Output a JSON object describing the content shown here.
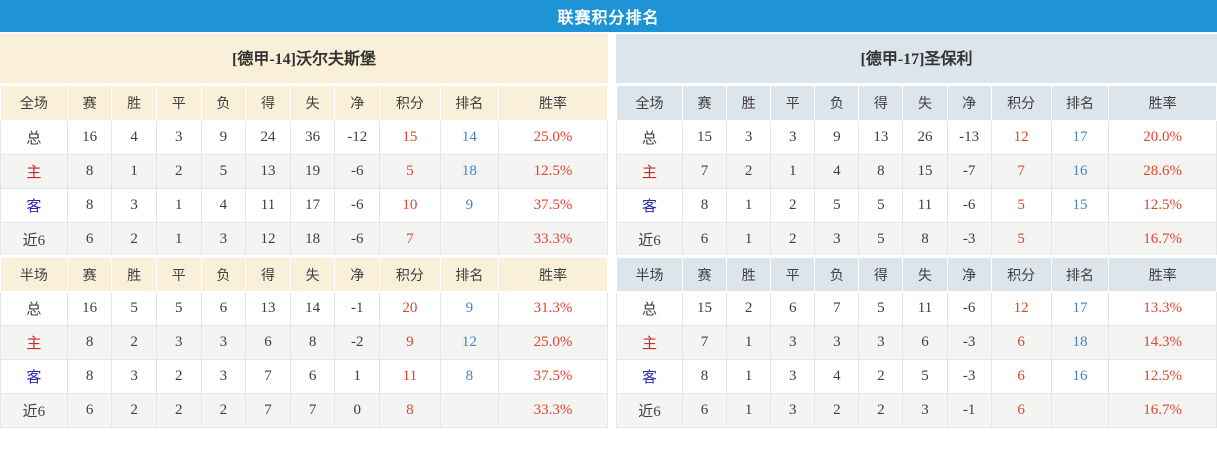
{
  "banner": {
    "title": "联赛积分排名"
  },
  "columns": {
    "full_label": "全场",
    "half_label": "半场",
    "stats": [
      "赛",
      "胜",
      "平",
      "负",
      "得",
      "失",
      "净",
      "积分",
      "排名",
      "胜率"
    ]
  },
  "colors": {
    "banner_bg": "#1e93d6",
    "left_header_bg": "#faf0d9",
    "right_header_bg": "#dce4ec",
    "points_color": "#e0452e",
    "rank_color": "#4285c4",
    "win_rate_color": "#e0452e",
    "home_label_color": "#c62a2a",
    "away_label_color": "#2a2ab4"
  },
  "teams": [
    {
      "title": "[德甲-14]沃尔夫斯堡",
      "full": [
        {
          "label": "总",
          "type": "total",
          "cells": [
            "16",
            "4",
            "3",
            "9",
            "24",
            "36",
            "-12"
          ],
          "points": "15",
          "rank": "14",
          "rate": "25.0%"
        },
        {
          "label": "主",
          "type": "home",
          "cells": [
            "8",
            "1",
            "2",
            "5",
            "13",
            "19",
            "-6"
          ],
          "points": "5",
          "rank": "18",
          "rate": "12.5%"
        },
        {
          "label": "客",
          "type": "away",
          "cells": [
            "8",
            "3",
            "1",
            "4",
            "11",
            "17",
            "-6"
          ],
          "points": "10",
          "rank": "9",
          "rate": "37.5%"
        },
        {
          "label": "近6",
          "type": "recent",
          "cells": [
            "6",
            "2",
            "1",
            "3",
            "12",
            "18",
            "-6"
          ],
          "points": "7",
          "rank": "",
          "rate": "33.3%"
        }
      ],
      "half": [
        {
          "label": "总",
          "type": "total",
          "cells": [
            "16",
            "5",
            "5",
            "6",
            "13",
            "14",
            "-1"
          ],
          "points": "20",
          "rank": "9",
          "rate": "31.3%"
        },
        {
          "label": "主",
          "type": "home",
          "cells": [
            "8",
            "2",
            "3",
            "3",
            "6",
            "8",
            "-2"
          ],
          "points": "9",
          "rank": "12",
          "rate": "25.0%"
        },
        {
          "label": "客",
          "type": "away",
          "cells": [
            "8",
            "3",
            "2",
            "3",
            "7",
            "6",
            "1"
          ],
          "points": "11",
          "rank": "8",
          "rate": "37.5%"
        },
        {
          "label": "近6",
          "type": "recent",
          "cells": [
            "6",
            "2",
            "2",
            "2",
            "7",
            "7",
            "0"
          ],
          "points": "8",
          "rank": "",
          "rate": "33.3%"
        }
      ]
    },
    {
      "title": "[德甲-17]圣保利",
      "full": [
        {
          "label": "总",
          "type": "total",
          "cells": [
            "15",
            "3",
            "3",
            "9",
            "13",
            "26",
            "-13"
          ],
          "points": "12",
          "rank": "17",
          "rate": "20.0%"
        },
        {
          "label": "主",
          "type": "home",
          "cells": [
            "7",
            "2",
            "1",
            "4",
            "8",
            "15",
            "-7"
          ],
          "points": "7",
          "rank": "16",
          "rate": "28.6%"
        },
        {
          "label": "客",
          "type": "away",
          "cells": [
            "8",
            "1",
            "2",
            "5",
            "5",
            "11",
            "-6"
          ],
          "points": "5",
          "rank": "15",
          "rate": "12.5%"
        },
        {
          "label": "近6",
          "type": "recent",
          "cells": [
            "6",
            "1",
            "2",
            "3",
            "5",
            "8",
            "-3"
          ],
          "points": "5",
          "rank": "",
          "rate": "16.7%"
        }
      ],
      "half": [
        {
          "label": "总",
          "type": "total",
          "cells": [
            "15",
            "2",
            "6",
            "7",
            "5",
            "11",
            "-6"
          ],
          "points": "12",
          "rank": "17",
          "rate": "13.3%"
        },
        {
          "label": "主",
          "type": "home",
          "cells": [
            "7",
            "1",
            "3",
            "3",
            "3",
            "6",
            "-3"
          ],
          "points": "6",
          "rank": "18",
          "rate": "14.3%"
        },
        {
          "label": "客",
          "type": "away",
          "cells": [
            "8",
            "1",
            "3",
            "4",
            "2",
            "5",
            "-3"
          ],
          "points": "6",
          "rank": "16",
          "rate": "12.5%"
        },
        {
          "label": "近6",
          "type": "recent",
          "cells": [
            "6",
            "1",
            "3",
            "2",
            "2",
            "3",
            "-1"
          ],
          "points": "6",
          "rank": "",
          "rate": "16.7%"
        }
      ]
    }
  ]
}
